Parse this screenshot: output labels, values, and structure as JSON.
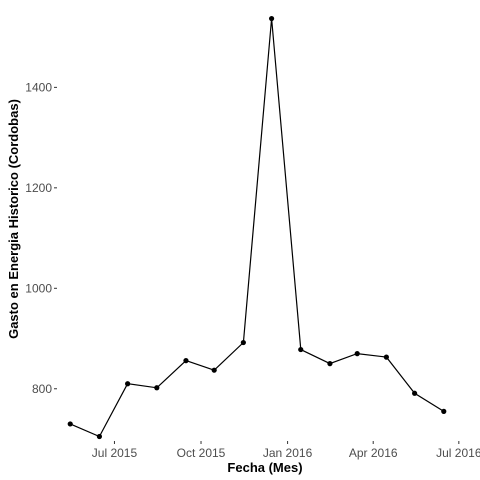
{
  "chart_data": {
    "type": "line",
    "title": "",
    "xlabel": "Fecha (Mes)",
    "ylabel": "Gasto en Energia Historico (Cordobas)",
    "x_ticks": [
      {
        "date": "2015-07-01",
        "label": "Jul 2015"
      },
      {
        "date": "2015-10-01",
        "label": "Oct 2015"
      },
      {
        "date": "2016-01-01",
        "label": "Jan 2016"
      },
      {
        "date": "2016-04-01",
        "label": "Apr 2016"
      },
      {
        "date": "2016-07-01",
        "label": "Jul 2016"
      }
    ],
    "y_ticks": [
      800,
      1000,
      1200,
      1400
    ],
    "xlim": [
      "2015-05-02",
      "2016-07-15"
    ],
    "ylim": [
      698,
      1558
    ],
    "grid": false,
    "legend": "none",
    "series": [
      {
        "points": [
          {
            "x": "2015-05-15",
            "y": 730
          },
          {
            "x": "2015-06-15",
            "y": 705
          },
          {
            "x": "2015-07-15",
            "y": 810
          },
          {
            "x": "2015-08-15",
            "y": 802
          },
          {
            "x": "2015-09-15",
            "y": 856
          },
          {
            "x": "2015-10-15",
            "y": 837
          },
          {
            "x": "2015-11-15",
            "y": 892
          },
          {
            "x": "2015-12-15",
            "y": 1537
          },
          {
            "x": "2016-01-15",
            "y": 878
          },
          {
            "x": "2016-02-15",
            "y": 850
          },
          {
            "x": "2016-03-15",
            "y": 870
          },
          {
            "x": "2016-04-15",
            "y": 863
          },
          {
            "x": "2016-05-15",
            "y": 791
          },
          {
            "x": "2016-06-15",
            "y": 755
          }
        ]
      }
    ]
  }
}
